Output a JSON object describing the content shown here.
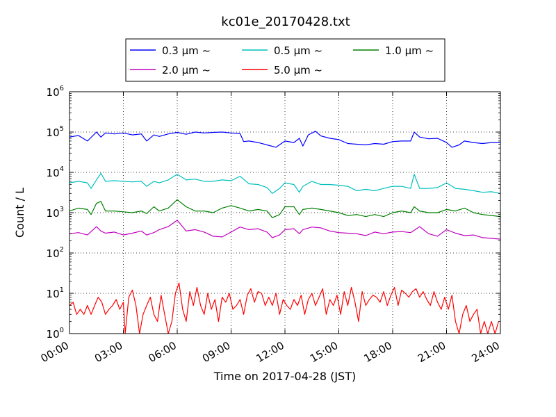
{
  "chart_data": {
    "type": "line",
    "title": "kc01e_20170428.txt",
    "xlabel": "Time on 2017-04-28 (JST)",
    "ylabel": "Count / L",
    "x_tick_labels": [
      "00:00",
      "03:00",
      "06:00",
      "09:00",
      "12:00",
      "15:00",
      "18:00",
      "21:00",
      "24:00"
    ],
    "y_tick_bases": [
      "10",
      "10",
      "10",
      "10",
      "10",
      "10",
      "10"
    ],
    "y_tick_exps": [
      "0",
      "1",
      "2",
      "3",
      "4",
      "5",
      "6"
    ],
    "y_scale": "log",
    "xlim_hours": [
      0,
      24
    ],
    "ylim": [
      1,
      1000000
    ],
    "grid": true,
    "legend_position": "top-center",
    "series": [
      {
        "name": "0.3 μm ~",
        "color": "#0000ff",
        "x_hours": [
          0,
          0.5,
          1,
          1.5,
          1.75,
          2,
          2.5,
          3,
          3.5,
          4,
          4.3,
          4.7,
          5,
          5.5,
          6,
          6.5,
          7,
          7.5,
          8,
          8.5,
          9,
          9.5,
          9.7,
          10,
          10.5,
          11,
          11.5,
          12,
          12.5,
          12.8,
          13,
          13.3,
          13.7,
          14,
          14.5,
          15,
          15.5,
          16,
          16.5,
          17,
          17.5,
          18,
          18.5,
          19,
          19.2,
          19.5,
          20,
          20.5,
          21,
          21.3,
          21.7,
          22,
          22.5,
          23,
          23.5,
          24
        ],
        "values": [
          75000,
          82000,
          60000,
          100000,
          75000,
          95000,
          90000,
          95000,
          85000,
          90000,
          60000,
          85000,
          78000,
          90000,
          98000,
          88000,
          100000,
          95000,
          98000,
          100000,
          95000,
          92000,
          58000,
          60000,
          55000,
          48000,
          42000,
          60000,
          55000,
          70000,
          45000,
          85000,
          105000,
          80000,
          70000,
          65000,
          52000,
          50000,
          48000,
          52000,
          50000,
          58000,
          60000,
          60000,
          100000,
          75000,
          68000,
          70000,
          55000,
          42000,
          48000,
          60000,
          55000,
          52000,
          55000,
          55000
        ]
      },
      {
        "name": "0.5 μm ~",
        "color": "#00bfbf",
        "x_hours": [
          0,
          0.5,
          1,
          1.2,
          1.5,
          1.75,
          2,
          2.5,
          3,
          3.5,
          4,
          4.3,
          4.7,
          5,
          5.5,
          6,
          6.5,
          7,
          7.5,
          8,
          8.5,
          9,
          9.5,
          10,
          10.5,
          11,
          11.3,
          11.7,
          12,
          12.5,
          12.8,
          13,
          13.5,
          14,
          14.5,
          15,
          15.5,
          16,
          16.5,
          17,
          17.5,
          18,
          18.5,
          19,
          19.2,
          19.5,
          20,
          20.5,
          21,
          21.5,
          22,
          22.5,
          23,
          23.5,
          24
        ],
        "values": [
          5500,
          6000,
          5500,
          4000,
          6500,
          9500,
          6000,
          6200,
          6000,
          5800,
          6000,
          4500,
          6000,
          5500,
          6500,
          9000,
          6500,
          6800,
          6000,
          6000,
          6500,
          6200,
          8000,
          5200,
          5000,
          4200,
          3000,
          4000,
          5500,
          5000,
          3200,
          4500,
          6000,
          5000,
          5000,
          4800,
          4500,
          3500,
          3800,
          3500,
          4000,
          4500,
          4500,
          4000,
          9000,
          4000,
          4000,
          4200,
          5500,
          4000,
          3800,
          3500,
          3200,
          3300,
          3000
        ]
      },
      {
        "name": "1.0 μm ~",
        "color": "#008000",
        "x_hours": [
          0,
          0.5,
          1,
          1.2,
          1.5,
          1.75,
          2,
          2.5,
          3,
          3.5,
          4,
          4.3,
          4.7,
          5,
          5.5,
          6,
          6.5,
          7,
          7.5,
          8,
          8.5,
          9,
          9.5,
          10,
          10.5,
          11,
          11.3,
          11.7,
          12,
          12.5,
          12.8,
          13,
          13.5,
          14,
          14.5,
          15,
          15.5,
          16,
          16.5,
          17,
          17.5,
          18,
          18.5,
          19,
          19.2,
          19.5,
          20,
          20.5,
          21,
          21.5,
          22,
          22.5,
          23,
          23.5,
          24
        ],
        "values": [
          1100,
          1300,
          1200,
          900,
          1700,
          1900,
          1100,
          1100,
          1050,
          1000,
          1100,
          950,
          1400,
          1100,
          1300,
          2100,
          1400,
          1100,
          1100,
          1000,
          1300,
          1500,
          1300,
          1100,
          1200,
          1100,
          750,
          900,
          1400,
          1400,
          900,
          1200,
          1300,
          1200,
          1100,
          1000,
          850,
          900,
          800,
          900,
          800,
          1000,
          1100,
          1000,
          1400,
          1100,
          1000,
          1000,
          1200,
          1100,
          1300,
          1000,
          900,
          850,
          800
        ]
      },
      {
        "name": "2.0 μm ~",
        "color": "#bf00bf",
        "x_hours": [
          0,
          0.5,
          1,
          1.5,
          1.75,
          2,
          2.5,
          3,
          3.5,
          4,
          4.3,
          4.7,
          5,
          5.5,
          6,
          6.5,
          7,
          7.5,
          8,
          8.5,
          9,
          9.5,
          10,
          10.5,
          11,
          11.3,
          11.7,
          12,
          12.5,
          12.8,
          13,
          13.5,
          14,
          14.5,
          15,
          15.5,
          16,
          16.5,
          17,
          17.5,
          18,
          18.5,
          19,
          19.5,
          20,
          20.5,
          21,
          21.5,
          22,
          22.5,
          23,
          23.5,
          24
        ],
        "values": [
          300,
          320,
          280,
          450,
          350,
          310,
          330,
          280,
          310,
          350,
          280,
          320,
          380,
          450,
          650,
          350,
          380,
          330,
          260,
          250,
          330,
          440,
          380,
          400,
          330,
          240,
          280,
          380,
          400,
          300,
          380,
          440,
          420,
          350,
          320,
          310,
          300,
          270,
          330,
          300,
          330,
          340,
          320,
          450,
          300,
          260,
          380,
          310,
          270,
          280,
          240,
          230,
          220
        ]
      },
      {
        "name": "5.0 μm ~",
        "color": "#ff0000",
        "x_hours": [
          0,
          0.2,
          0.4,
          0.6,
          0.8,
          1.0,
          1.2,
          1.4,
          1.6,
          1.8,
          2.0,
          2.2,
          2.4,
          2.6,
          2.8,
          3.0,
          3.1,
          3.3,
          3.5,
          3.7,
          3.9,
          4.1,
          4.3,
          4.5,
          4.7,
          4.9,
          5.1,
          5.3,
          5.5,
          5.7,
          5.9,
          6.1,
          6.3,
          6.5,
          6.7,
          6.9,
          7.1,
          7.3,
          7.5,
          7.7,
          7.9,
          8.1,
          8.3,
          8.5,
          8.7,
          8.9,
          9.1,
          9.3,
          9.5,
          9.7,
          9.9,
          10.1,
          10.3,
          10.5,
          10.7,
          10.9,
          11.1,
          11.3,
          11.5,
          11.7,
          11.9,
          12.1,
          12.3,
          12.5,
          12.7,
          12.9,
          13.1,
          13.3,
          13.5,
          13.7,
          13.9,
          14.1,
          14.3,
          14.5,
          14.7,
          14.9,
          15.1,
          15.3,
          15.5,
          15.7,
          15.9,
          16.1,
          16.3,
          16.5,
          16.7,
          16.9,
          17.1,
          17.3,
          17.5,
          17.7,
          17.9,
          18.1,
          18.3,
          18.5,
          18.7,
          18.9,
          19.1,
          19.3,
          19.5,
          19.7,
          19.9,
          20.1,
          20.3,
          20.5,
          20.7,
          20.9,
          21.1,
          21.3,
          21.5,
          21.7,
          21.9,
          22.1,
          22.3,
          22.5,
          22.7,
          22.9,
          23.1,
          23.3,
          23.5,
          23.7,
          23.9
        ],
        "values": [
          5,
          6,
          3,
          4,
          3,
          5,
          3,
          5,
          8,
          6,
          3,
          4,
          5,
          7,
          4,
          6,
          1,
          8,
          12,
          5,
          1,
          3,
          5,
          8,
          3,
          2,
          9,
          3,
          1,
          2,
          10,
          18,
          4,
          2,
          11,
          5,
          14,
          5,
          3,
          10,
          4,
          7,
          2,
          8,
          6,
          10,
          4,
          5,
          7,
          3,
          9,
          13,
          6,
          11,
          10,
          5,
          8,
          5,
          10,
          3,
          7,
          5,
          4,
          7,
          5,
          9,
          3,
          7,
          10,
          5,
          8,
          13,
          3,
          7,
          5,
          9,
          3,
          11,
          5,
          14,
          6,
          2,
          11,
          5,
          7,
          9,
          8,
          6,
          11,
          5,
          9,
          14,
          5,
          12,
          10,
          8,
          11,
          13,
          8,
          11,
          7,
          5,
          11,
          6,
          4,
          8,
          4,
          9,
          2,
          1,
          3,
          5,
          2,
          3,
          4,
          1,
          2,
          1,
          2,
          1,
          2
        ]
      }
    ]
  }
}
